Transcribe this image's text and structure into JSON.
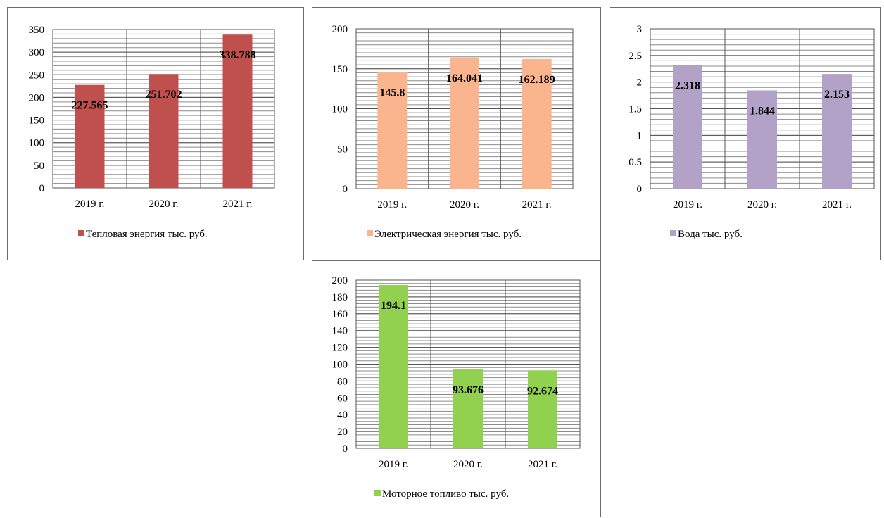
{
  "chart_data": [
    {
      "type": "bar",
      "categories": [
        "2019 г.",
        "2020 г.",
        "2021 г."
      ],
      "series": [
        {
          "name": "Тепловая энергия тыс. руб.",
          "values": [
            227.565,
            251.702,
            338.788
          ],
          "color": "#c0504d"
        }
      ],
      "value_labels": [
        "227.565",
        "251.702",
        "338.788"
      ],
      "ylim": [
        0,
        350
      ],
      "yticks": [
        0,
        50,
        100,
        150,
        200,
        250,
        300,
        350
      ],
      "ytick_labels": [
        "0",
        "50",
        "100",
        "150",
        "200",
        "250",
        "300",
        "350"
      ],
      "minor_step": 10,
      "grid": true,
      "legend": "bottom"
    },
    {
      "type": "bar",
      "categories": [
        "2019 г.",
        "2020 г.",
        "2021 г."
      ],
      "series": [
        {
          "name": "Электрическая энергия тыс. руб.",
          "values": [
            145.8,
            164.041,
            162.189
          ],
          "color": "#fab58e"
        }
      ],
      "value_labels": [
        "145.8",
        "164.041",
        "162.189"
      ],
      "ylim": [
        0,
        200
      ],
      "yticks": [
        0,
        50,
        100,
        150,
        200
      ],
      "ytick_labels": [
        "0",
        "50",
        "100",
        "150",
        "200"
      ],
      "minor_step": 5,
      "grid": true,
      "legend": "bottom"
    },
    {
      "type": "bar",
      "categories": [
        "2019 г.",
        "2020 г.",
        "2021 г."
      ],
      "series": [
        {
          "name": "Вода тыс. руб.",
          "values": [
            2.318,
            1.844,
            2.153
          ],
          "color": "#b3a2c7"
        }
      ],
      "value_labels": [
        "2.318",
        "1.844",
        "2.153"
      ],
      "ylim": [
        0,
        3
      ],
      "yticks": [
        0,
        0.5,
        1,
        1.5,
        2,
        2.5,
        3
      ],
      "ytick_labels": [
        "0",
        "0.5",
        "1",
        "1.5",
        "2",
        "2.5",
        "3"
      ],
      "minor_step": 0.1,
      "grid": true,
      "legend": "bottom"
    },
    {
      "type": "bar",
      "categories": [
        "2019 г.",
        "2020 г.",
        "2021 г."
      ],
      "series": [
        {
          "name": "Моторное топливо тыс. руб.",
          "values": [
            194.1,
            93.676,
            92.674
          ],
          "color": "#92d050"
        }
      ],
      "value_labels": [
        "194.1",
        "93.676",
        "92.674"
      ],
      "ylim": [
        0,
        200
      ],
      "yticks": [
        0,
        20,
        40,
        60,
        80,
        100,
        120,
        140,
        160,
        180,
        200
      ],
      "ytick_labels": [
        "0",
        "20",
        "40",
        "60",
        "80",
        "100",
        "120",
        "140",
        "160",
        "180",
        "200"
      ],
      "minor_step": 4,
      "grid": true,
      "legend": "bottom"
    }
  ]
}
